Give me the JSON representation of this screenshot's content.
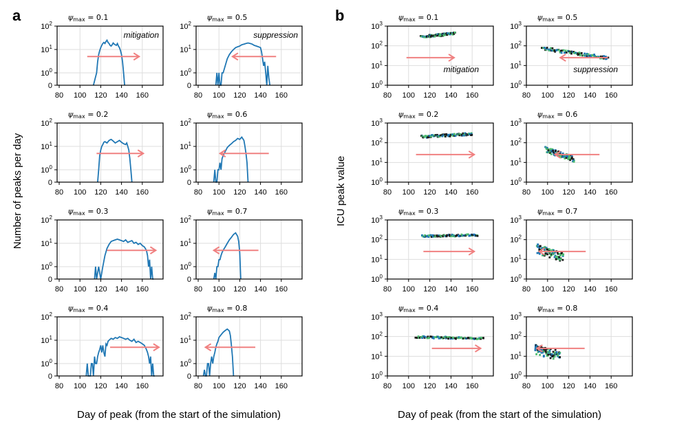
{
  "panel_labels": {
    "a": "a",
    "b": "b"
  },
  "colors": {
    "line": "#1f77b4",
    "arrow": "#f08080",
    "green": "#4dbb6f",
    "dark": "#1a1a1a",
    "grid": "#dddddd"
  },
  "chart_data": [
    {
      "panel": "a",
      "type": "line",
      "ylabel": "Number of peaks per day",
      "xlabel": "Day of peak (from the start of the simulation)",
      "xlim": [
        78,
        180
      ],
      "xticks": [
        80,
        100,
        120,
        140,
        160
      ],
      "ytick_labels": [
        "0",
        "10^0",
        "10^1",
        "10^2"
      ],
      "annotations": [
        {
          "subplot": 0,
          "text": "mitigation"
        },
        {
          "subplot": 1,
          "text": "suppression"
        }
      ],
      "subplots": [
        {
          "title": "ψmax = 0.1",
          "arrow": [
            107,
            157
          ],
          "x": [
            113,
            116,
            117,
            118,
            119,
            120,
            121,
            122,
            123,
            124,
            125,
            126,
            127,
            128,
            129,
            130,
            131,
            132,
            133,
            134,
            135,
            136,
            137,
            138,
            139,
            140,
            141,
            142,
            143
          ],
          "y": [
            0,
            1,
            3,
            6,
            9,
            12,
            15,
            18,
            20,
            18,
            22,
            25,
            20,
            18,
            15,
            14,
            16,
            19,
            17,
            16,
            15,
            18,
            14,
            12,
            9,
            6,
            3,
            1,
            0
          ]
        },
        {
          "title": "ψmax = 0.5",
          "arrow": [
            155,
            113
          ],
          "x": [
            97,
            98,
            99,
            100,
            101,
            102,
            103,
            104,
            106,
            108,
            110,
            112,
            114,
            116,
            118,
            120,
            122,
            124,
            126,
            128,
            130,
            132,
            134,
            136,
            138,
            140,
            141,
            142,
            143,
            144,
            145,
            146,
            147,
            148,
            149
          ],
          "y": [
            0,
            1,
            0,
            1,
            0,
            0,
            1,
            1,
            2,
            4,
            6,
            8,
            10,
            12,
            13,
            14,
            16,
            17,
            18,
            19,
            18,
            17,
            15,
            14,
            13,
            12,
            8,
            4,
            2,
            3,
            1,
            0,
            2,
            0.6,
            0
          ]
        },
        {
          "title": "ψmax = 0.2",
          "arrow": [
            116,
            161
          ],
          "x": [
            117,
            118,
            119,
            120,
            121,
            122,
            123,
            124,
            126,
            128,
            130,
            132,
            134,
            136,
            138,
            140,
            142,
            144,
            145,
            146,
            147,
            148,
            149,
            150
          ],
          "y": [
            0,
            1,
            4,
            7,
            10,
            12,
            15,
            16,
            14,
            18,
            20,
            17,
            14,
            16,
            18,
            15,
            13,
            12,
            14,
            10,
            7,
            3,
            1,
            0
          ]
        },
        {
          "title": "ψmax = 0.6",
          "arrow": [
            148,
            101
          ],
          "x": [
            95,
            96,
            97,
            98,
            99,
            100,
            101,
            102,
            103,
            104,
            106,
            108,
            110,
            112,
            114,
            116,
            118,
            120,
            122,
            124,
            125,
            126,
            127,
            128
          ],
          "y": [
            0,
            1,
            0,
            0,
            1,
            1,
            2,
            1,
            3,
            4,
            6,
            9,
            11,
            13,
            16,
            18,
            22,
            20,
            25,
            18,
            10,
            5,
            2,
            0
          ]
        },
        {
          "title": "ψmax = 0.3",
          "arrow": [
            126,
            173
          ],
          "x": [
            114,
            115,
            116,
            118,
            120,
            122,
            124,
            126,
            128,
            130,
            132,
            134,
            136,
            138,
            140,
            142,
            144,
            146,
            148,
            150,
            152,
            154,
            156,
            158,
            160,
            162,
            164,
            165,
            166,
            167,
            168,
            169,
            170,
            171
          ],
          "y": [
            0,
            1,
            0,
            1,
            0,
            1,
            3,
            6,
            9,
            12,
            13,
            14,
            15,
            14,
            13,
            12,
            14,
            11,
            12,
            13,
            10,
            11,
            9,
            10,
            8,
            7,
            5,
            3,
            1,
            2,
            0,
            1,
            0,
            0
          ]
        },
        {
          "title": "ψmax = 0.7",
          "arrow": [
            138,
            95
          ],
          "x": [
            95,
            96,
            97,
            98,
            99,
            100,
            101,
            102,
            103,
            104,
            106,
            108,
            110,
            112,
            114,
            116,
            118,
            119,
            120,
            121
          ],
          "y": [
            0,
            0.5,
            0,
            1,
            1,
            2,
            2,
            3,
            4,
            5,
            7,
            10,
            14,
            18,
            24,
            28,
            20,
            12,
            4,
            0
          ]
        },
        {
          "title": "ψmax = 0.4",
          "arrow": [
            129,
            176
          ],
          "x": [
            106,
            107,
            108,
            109,
            110,
            111,
            112,
            113,
            114,
            115,
            116,
            117,
            118,
            119,
            120,
            121,
            122,
            123,
            124,
            125,
            126,
            127,
            128,
            130,
            132,
            134,
            136,
            138,
            140,
            142,
            144,
            146,
            148,
            150,
            152,
            154,
            156,
            158,
            160,
            162,
            164,
            165,
            166,
            167,
            168,
            169,
            170,
            171,
            172
          ],
          "y": [
            0,
            1,
            0,
            0,
            0,
            1,
            1,
            0,
            2,
            1,
            1,
            2,
            3,
            4,
            6,
            3,
            6,
            3,
            2,
            7,
            6,
            9,
            10,
            12,
            11,
            13,
            12,
            14,
            13,
            12,
            11,
            12,
            10,
            9,
            11,
            8,
            9,
            8,
            7,
            6,
            4,
            3,
            2,
            1,
            2,
            0,
            1,
            0,
            0
          ]
        },
        {
          "title": "ψmax = 0.8",
          "arrow": [
            135,
            87
          ],
          "x": [
            85,
            86,
            87,
            88,
            89,
            90,
            91,
            92,
            93,
            94,
            95,
            96,
            97,
            98,
            99,
            100,
            102,
            104,
            106,
            108,
            110,
            111,
            112,
            113,
            114
          ],
          "y": [
            0,
            0.5,
            0,
            0,
            1,
            1,
            0,
            1,
            2,
            1,
            2,
            3,
            5,
            7,
            9,
            13,
            17,
            22,
            26,
            30,
            25,
            16,
            6,
            2,
            0
          ]
        }
      ]
    },
    {
      "panel": "b",
      "type": "scatter",
      "ylabel": "ICU peak value",
      "xlabel": "Day of peak (from the start of the simulation)",
      "xlim": [
        80,
        180
      ],
      "xticks": [
        80,
        100,
        120,
        140,
        160
      ],
      "ylim_log10": [
        0,
        3
      ],
      "ytick_labels": [
        "10^0",
        "10^1",
        "10^2",
        "10^3"
      ],
      "annotations": [
        {
          "subplot": 0,
          "text": "mitigation"
        },
        {
          "subplot": 1,
          "text": "suppression"
        }
      ],
      "subplots": [
        {
          "title": "ψmax = 0.1",
          "arrow": [
            98,
            143
          ],
          "cloud": {
            "x_from": 112,
            "x_to": 144,
            "y_from": 280,
            "y_to": 420,
            "spread": 0.06
          }
        },
        {
          "title": "ψmax = 0.5",
          "arrow": [
            157,
            112
          ],
          "cloud": {
            "x_from": 95,
            "x_to": 157,
            "y_from": 75,
            "y_to": 24,
            "spread": 0.08
          }
        },
        {
          "title": "ψmax = 0.2",
          "arrow": [
            107,
            162
          ],
          "cloud": {
            "x_from": 112,
            "x_to": 160,
            "y_from": 200,
            "y_to": 280,
            "spread": 0.06
          }
        },
        {
          "title": "ψmax = 0.6",
          "arrow": [
            149,
            107
          ],
          "cloud": {
            "x_from": 98,
            "x_to": 125,
            "y_from": 45,
            "y_to": 15,
            "spread": 0.15
          }
        },
        {
          "title": "ψmax = 0.3",
          "arrow": [
            114,
            162
          ],
          "cloud": {
            "x_from": 113,
            "x_to": 165,
            "y_from": 150,
            "y_to": 170,
            "spread": 0.05
          }
        },
        {
          "title": "ψmax = 0.7",
          "arrow": [
            136,
            92
          ],
          "cloud": {
            "x_from": 90,
            "x_to": 115,
            "y_from": 35,
            "y_to": 12,
            "spread": 0.25
          }
        },
        {
          "title": "ψmax = 0.4",
          "arrow": [
            122,
            168
          ],
          "cloud": {
            "x_from": 107,
            "x_to": 171,
            "y_from": 95,
            "y_to": 80,
            "spread": 0.05
          }
        },
        {
          "title": "ψmax = 0.8",
          "arrow": [
            135,
            90
          ],
          "cloud": {
            "x_from": 88,
            "x_to": 112,
            "y_from": 22,
            "y_to": 10,
            "spread": 0.25
          }
        }
      ]
    }
  ]
}
